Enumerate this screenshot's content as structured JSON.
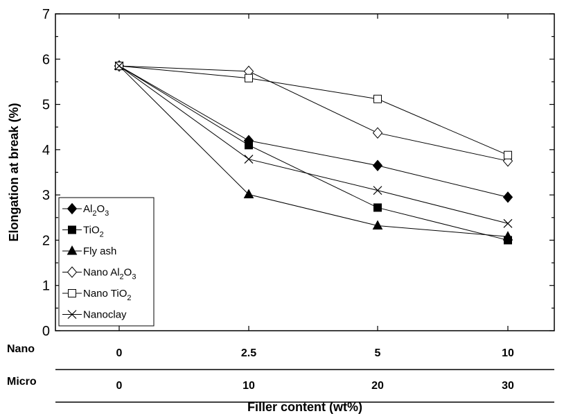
{
  "chart_data": {
    "type": "line",
    "categories": [
      "0",
      "2.5",
      "5",
      "10"
    ],
    "category_rows": [
      {
        "label": "Nano",
        "values": [
          "0",
          "2.5",
          "5",
          "10"
        ]
      },
      {
        "label": "Micro",
        "values": [
          "0",
          "10",
          "20",
          "30"
        ]
      }
    ],
    "xlabel": "Filler content (wt%)",
    "ylabel": "Elongation at break (%)",
    "ylim": [
      0,
      7
    ],
    "yticks": [
      "0",
      "1",
      "2",
      "3",
      "4",
      "5",
      "6",
      "7"
    ],
    "legend_position": "bottom-left",
    "series": [
      {
        "name": "Al2O3",
        "label_main": "Al",
        "sub1": "2",
        "mid": "O",
        "sub2": "3",
        "marker": "diamond-filled",
        "values": [
          5.85,
          4.2,
          3.65,
          2.95
        ]
      },
      {
        "name": "TiO2",
        "label_main": "TiO",
        "sub1": "2",
        "marker": "square-filled",
        "values": [
          5.85,
          4.1,
          2.72,
          2.0
        ]
      },
      {
        "name": "Fly ash",
        "label_main": "Fly ash",
        "marker": "triangle-filled",
        "values": [
          5.85,
          3.01,
          2.32,
          2.08
        ]
      },
      {
        "name": "Nano Al2O3",
        "label_main": "Nano Al",
        "sub1": "2",
        "mid": "O",
        "sub2": "3",
        "marker": "diamond-open",
        "values": [
          5.85,
          5.73,
          4.37,
          3.75
        ]
      },
      {
        "name": "Nano TiO2",
        "label_main": "Nano TiO",
        "sub1": "2",
        "marker": "square-open",
        "values": [
          5.85,
          5.58,
          5.12,
          3.88
        ]
      },
      {
        "name": "Nanoclay",
        "label_main": "Nanoclay",
        "marker": "x",
        "values": [
          5.85,
          3.79,
          3.1,
          2.37
        ]
      }
    ]
  }
}
